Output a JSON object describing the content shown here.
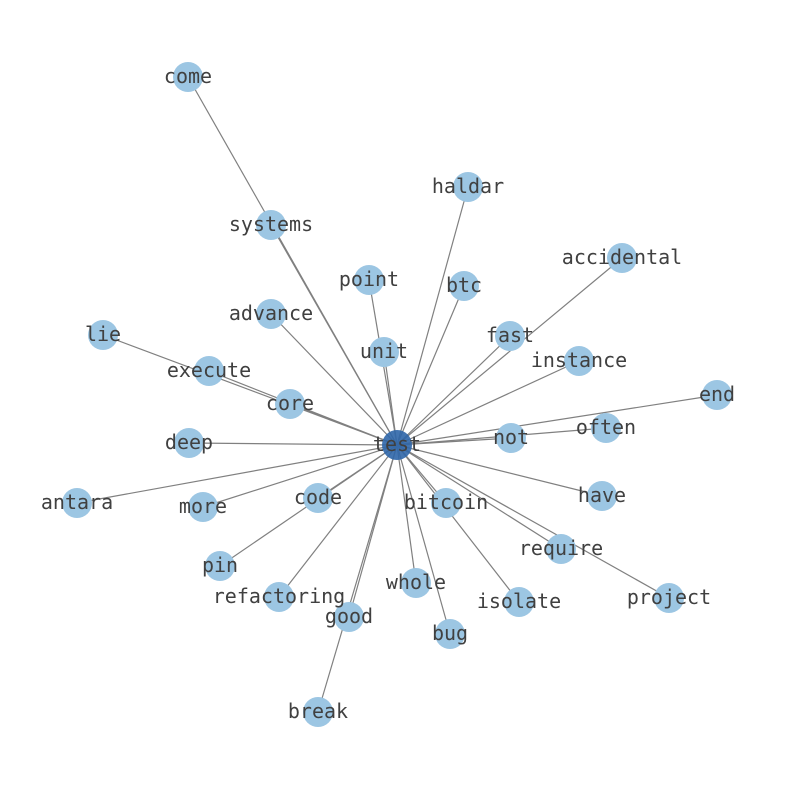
{
  "colors": {
    "node": "#9cc6e3",
    "center_node": "#2f66a8",
    "edge": "#808080",
    "label": "#404040"
  },
  "center": "test",
  "nodes": [
    "test",
    "come",
    "haldar",
    "systems",
    "accidental",
    "point",
    "btc",
    "advance",
    "fast",
    "lie",
    "unit",
    "instance",
    "execute",
    "end",
    "core",
    "often",
    "not",
    "deep",
    "antara",
    "more",
    "code",
    "bitcoin",
    "have",
    "require",
    "pin",
    "refactoring",
    "whole",
    "isolate",
    "project",
    "good",
    "bug",
    "break"
  ],
  "edges": [
    [
      "test",
      "come"
    ],
    [
      "test",
      "haldar"
    ],
    [
      "test",
      "systems"
    ],
    [
      "test",
      "accidental"
    ],
    [
      "test",
      "point"
    ],
    [
      "test",
      "btc"
    ],
    [
      "test",
      "advance"
    ],
    [
      "test",
      "fast"
    ],
    [
      "test",
      "lie"
    ],
    [
      "test",
      "unit"
    ],
    [
      "test",
      "instance"
    ],
    [
      "test",
      "execute"
    ],
    [
      "test",
      "end"
    ],
    [
      "test",
      "core"
    ],
    [
      "test",
      "often"
    ],
    [
      "test",
      "not"
    ],
    [
      "test",
      "deep"
    ],
    [
      "test",
      "antara"
    ],
    [
      "test",
      "more"
    ],
    [
      "test",
      "code"
    ],
    [
      "test",
      "bitcoin"
    ],
    [
      "test",
      "have"
    ],
    [
      "test",
      "require"
    ],
    [
      "test",
      "pin"
    ],
    [
      "test",
      "refactoring"
    ],
    [
      "test",
      "whole"
    ],
    [
      "test",
      "isolate"
    ],
    [
      "test",
      "project"
    ],
    [
      "test",
      "good"
    ],
    [
      "test",
      "bug"
    ],
    [
      "test",
      "break"
    ]
  ]
}
